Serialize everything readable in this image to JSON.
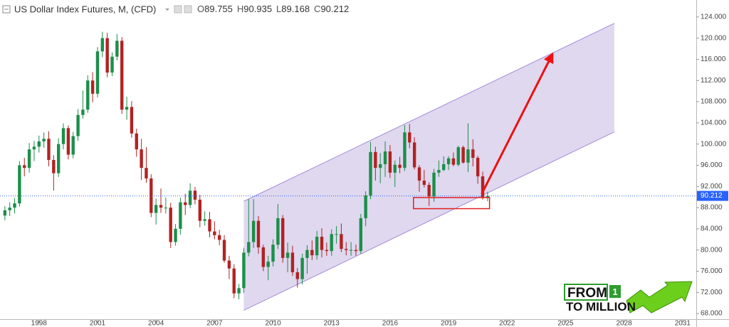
{
  "chart_data": {
    "type": "candlestick",
    "title": "US Dollar Index Futures, M, (CFD)",
    "ohlc_legend": [
      {
        "label": "O",
        "value": 89.755
      },
      {
        "label": "H",
        "value": 90.935
      },
      {
        "label": "L",
        "value": 89.168
      },
      {
        "label": "C",
        "value": 90.212
      }
    ],
    "up_color": "#1b8f4a",
    "down_color": "#b22222",
    "xlim": [
      1996.0,
      2031.7
    ],
    "xticks": [
      1998,
      2001,
      2004,
      2007,
      2010,
      2013,
      2016,
      2019,
      2022,
      2025,
      2028,
      2031
    ],
    "ylim": [
      66.8,
      127.2
    ],
    "yticks": [
      {
        "value": 68,
        "label": "68.000"
      },
      {
        "value": 72,
        "label": "72.000"
      },
      {
        "value": 76,
        "label": "76.000"
      },
      {
        "value": 80,
        "label": "80.000"
      },
      {
        "value": 84,
        "label": "84.000"
      },
      {
        "value": 88,
        "label": "88.000"
      },
      {
        "value": 92,
        "label": "92.000"
      },
      {
        "value": 96,
        "label": "96.000"
      },
      {
        "value": 100,
        "label": "100.000"
      },
      {
        "value": 104,
        "label": "104.000"
      },
      {
        "value": 108,
        "label": "108.000"
      },
      {
        "value": 112,
        "label": "112.000"
      },
      {
        "value": 116,
        "label": "116.000"
      },
      {
        "value": 120,
        "label": "120.000"
      },
      {
        "value": 124,
        "label": "124.000"
      }
    ],
    "last_price": 90.212,
    "last_price_color": "#2962ff",
    "x": [
      1996.25,
      1996.5,
      1996.75,
      1997.0,
      1997.25,
      1997.5,
      1997.75,
      1998.0,
      1998.25,
      1998.5,
      1998.75,
      1999.0,
      1999.25,
      1999.5,
      1999.75,
      2000.0,
      2000.25,
      2000.5,
      2000.75,
      2001.0,
      2001.25,
      2001.5,
      2001.75,
      2002.0,
      2002.25,
      2002.5,
      2002.75,
      2003.0,
      2003.25,
      2003.5,
      2003.75,
      2004.0,
      2004.25,
      2004.5,
      2004.75,
      2005.0,
      2005.25,
      2005.5,
      2005.75,
      2006.0,
      2006.25,
      2006.5,
      2006.75,
      2007.0,
      2007.25,
      2007.5,
      2007.75,
      2008.0,
      2008.25,
      2008.5,
      2008.75,
      2009.0,
      2009.25,
      2009.5,
      2009.75,
      2010.0,
      2010.25,
      2010.5,
      2010.75,
      2011.0,
      2011.25,
      2011.5,
      2011.75,
      2012.0,
      2012.25,
      2012.5,
      2012.75,
      2013.0,
      2013.25,
      2013.5,
      2013.75,
      2014.0,
      2014.25,
      2014.5,
      2014.75,
      2015.0,
      2015.25,
      2015.5,
      2015.75,
      2016.0,
      2016.25,
      2016.5,
      2016.75,
      2017.0,
      2017.25,
      2017.5,
      2017.75,
      2018.0,
      2018.25,
      2018.5,
      2018.75,
      2019.0,
      2019.25,
      2019.5,
      2019.75,
      2020.0,
      2020.25,
      2020.5,
      2020.75,
      2021.0
    ],
    "open": [
      86.5,
      87.5,
      88.0,
      88.8,
      96.0,
      95.5,
      99.0,
      99.5,
      100.5,
      101.0,
      97.0,
      94.5,
      100.0,
      103.0,
      98.0,
      101.5,
      105.5,
      106.5,
      112.0,
      109.5,
      117.5,
      120.0,
      113.5,
      116.5,
      119.5,
      106.5,
      107.0,
      102.0,
      99.0,
      95.5,
      93.5,
      87.0,
      88.5,
      88.0,
      88.0,
      81.5,
      84.0,
      89.0,
      88.5,
      91.2,
      89.5,
      85.5,
      85.8,
      83.5,
      82.8,
      81.9,
      78.0,
      76.5,
      71.8,
      72.8,
      79.5,
      81.5,
      85.5,
      80.5,
      76.8,
      77.8,
      81.0,
      86.0,
      78.5,
      79.5,
      75.8,
      74.5,
      78.5,
      80.0,
      79.0,
      82.5,
      80.0,
      79.8,
      83.0,
      83.0,
      80.2,
      80.0,
      80.0,
      79.8,
      86.0,
      90.3,
      98.5,
      95.5,
      96.2,
      98.6,
      94.6,
      96.1,
      95.5,
      102.2,
      100.3,
      95.6,
      93.1,
      92.3,
      90.1,
      94.6,
      95.1,
      96.2,
      97.3,
      96.1,
      99.4,
      96.5,
      99.0,
      97.4,
      93.9,
      89.9
    ],
    "high": [
      88.3,
      89.0,
      89.8,
      96.8,
      97.4,
      100.2,
      100.6,
      101.6,
      102.2,
      102.4,
      97.9,
      101.1,
      103.9,
      103.5,
      102.3,
      106.6,
      110.1,
      113.0,
      113.6,
      118.3,
      121.2,
      121.0,
      117.3,
      120.8,
      120.2,
      108.9,
      108.1,
      102.9,
      101.0,
      99.4,
      94.3,
      89.7,
      91.6,
      89.9,
      88.9,
      84.9,
      89.9,
      90.6,
      92.6,
      91.9,
      90.4,
      87.3,
      87.2,
      85.4,
      83.8,
      82.8,
      78.9,
      77.3,
      73.6,
      80.4,
      89.6,
      89.6,
      86.4,
      81.0,
      78.9,
      82.0,
      88.7,
      86.6,
      81.4,
      80.8,
      76.6,
      79.3,
      80.9,
      81.8,
      83.6,
      84.1,
      81.4,
      83.9,
      84.5,
      85.0,
      81.5,
      81.5,
      81.0,
      86.8,
      91.1,
      100.4,
      99.5,
      98.3,
      100.5,
      99.8,
      96.9,
      97.6,
      103.6,
      103.8,
      101.3,
      96.0,
      95.1,
      92.8,
      95.3,
      96.9,
      97.7,
      97.7,
      98.4,
      99.7,
      99.7,
      103.9,
      100.9,
      97.8,
      94.8,
      91.0
    ],
    "low": [
      85.6,
      86.4,
      86.9,
      88.2,
      93.9,
      94.6,
      96.8,
      98.4,
      99.3,
      95.8,
      91.2,
      93.8,
      99.0,
      97.1,
      97.3,
      100.6,
      104.8,
      105.9,
      107.9,
      108.8,
      116.4,
      112.6,
      112.8,
      115.8,
      105.7,
      104.6,
      101.2,
      97.6,
      93.2,
      92.7,
      86.2,
      84.8,
      87.0,
      86.9,
      80.4,
      80.8,
      82.9,
      86.6,
      87.9,
      88.6,
      84.3,
      84.6,
      82.4,
      82.0,
      80.9,
      77.6,
      74.5,
      70.9,
      70.7,
      71.9,
      78.8,
      80.4,
      79.3,
      76.0,
      74.3,
      76.9,
      80.2,
      77.6,
      75.8,
      75.1,
      72.9,
      73.5,
      75.5,
      78.1,
      78.2,
      78.6,
      78.9,
      78.9,
      81.2,
      79.6,
      79.0,
      78.9,
      78.9,
      79.3,
      84.5,
      89.6,
      93.1,
      92.6,
      93.8,
      93.6,
      91.9,
      94.5,
      94.9,
      99.2,
      95.2,
      91.0,
      91.8,
      88.3,
      89.1,
      93.8,
      94.9,
      95.1,
      95.8,
      95.8,
      96.3,
      94.7,
      95.8,
      92.5,
      89.5,
      89.2
    ],
    "close": [
      87.5,
      88.0,
      88.8,
      96.0,
      95.5,
      99.0,
      99.5,
      100.5,
      101.0,
      97.0,
      94.5,
      100.0,
      103.0,
      98.0,
      101.5,
      105.5,
      106.5,
      112.0,
      109.5,
      117.5,
      120.0,
      113.5,
      116.5,
      119.5,
      106.5,
      107.0,
      102.0,
      99.0,
      95.5,
      93.5,
      87.0,
      88.5,
      88.0,
      88.0,
      81.5,
      84.0,
      89.0,
      88.5,
      91.2,
      89.5,
      85.5,
      85.8,
      83.5,
      82.8,
      81.9,
      78.0,
      76.5,
      71.8,
      72.8,
      79.5,
      81.5,
      85.5,
      80.5,
      76.8,
      77.8,
      81.0,
      86.0,
      78.5,
      79.5,
      75.8,
      74.5,
      78.5,
      80.0,
      79.0,
      82.5,
      80.0,
      79.8,
      83.0,
      83.0,
      80.2,
      80.0,
      80.0,
      79.8,
      86.0,
      90.3,
      98.5,
      95.5,
      96.2,
      98.6,
      94.6,
      96.1,
      95.5,
      102.2,
      100.3,
      95.6,
      93.1,
      92.3,
      90.1,
      94.6,
      95.1,
      96.2,
      97.3,
      96.1,
      99.4,
      96.5,
      99.0,
      97.4,
      93.9,
      89.9,
      90.2
    ],
    "channel": {
      "x": [
        2008.5,
        2027.5
      ],
      "upper": [
        89.2,
        122.8
      ],
      "lower": [
        68.6,
        102.3
      ],
      "fill": "#d9d1ec",
      "stroke": "#a58bd8"
    },
    "highlight_box": {
      "x": [
        2017.2,
        2021.1
      ],
      "y": [
        87.8,
        89.9
      ],
      "color": "#e02020"
    },
    "arrow": {
      "x": [
        2020.7,
        2024.3
      ],
      "y": [
        90.6,
        116.8
      ],
      "color": "#ee1111"
    },
    "logo": {
      "line1": "FROM",
      "badge": "1",
      "line2": "TO MILLION"
    }
  }
}
